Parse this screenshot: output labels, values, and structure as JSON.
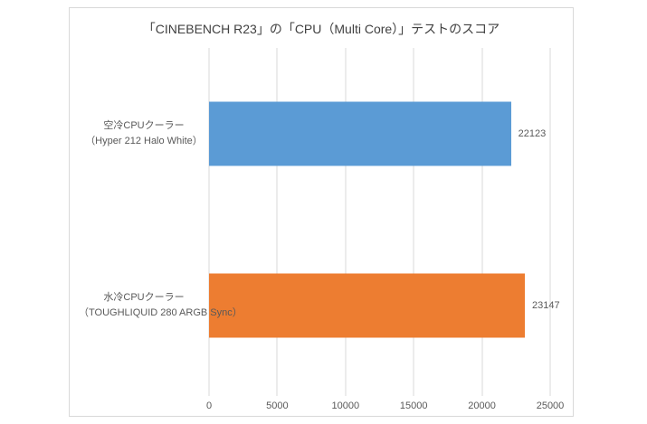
{
  "chart_data": {
    "type": "bar",
    "orientation": "horizontal",
    "title": "「CINEBENCH R23」の「CPU（Multi Core）」テストのスコア",
    "categories": [
      "空冷CPUクーラー",
      "水冷CPUクーラー"
    ],
    "category_sublabels": [
      "（Hyper 212 Halo White）",
      "（TOUGHLIQUID 280 ARGB Sync）"
    ],
    "values": [
      22123,
      23147
    ],
    "value_labels": [
      "22123",
      "23147"
    ],
    "x_ticks": [
      0,
      5000,
      10000,
      15000,
      20000,
      25000
    ],
    "x_tick_labels": [
      "0",
      "5000",
      "10000",
      "15000",
      "20000",
      "25000"
    ],
    "xlim": [
      0,
      25000
    ],
    "xlabel": "",
    "ylabel": "",
    "grid": true,
    "legend": "none",
    "colors": {
      "bars": [
        "#5b9bd5",
        "#ed7d31"
      ],
      "gridline": "#d9d9d9",
      "frame_border": "#d9d9d9",
      "title_text": "#404040",
      "label_text": "#595959",
      "background": "#ffffff"
    }
  }
}
